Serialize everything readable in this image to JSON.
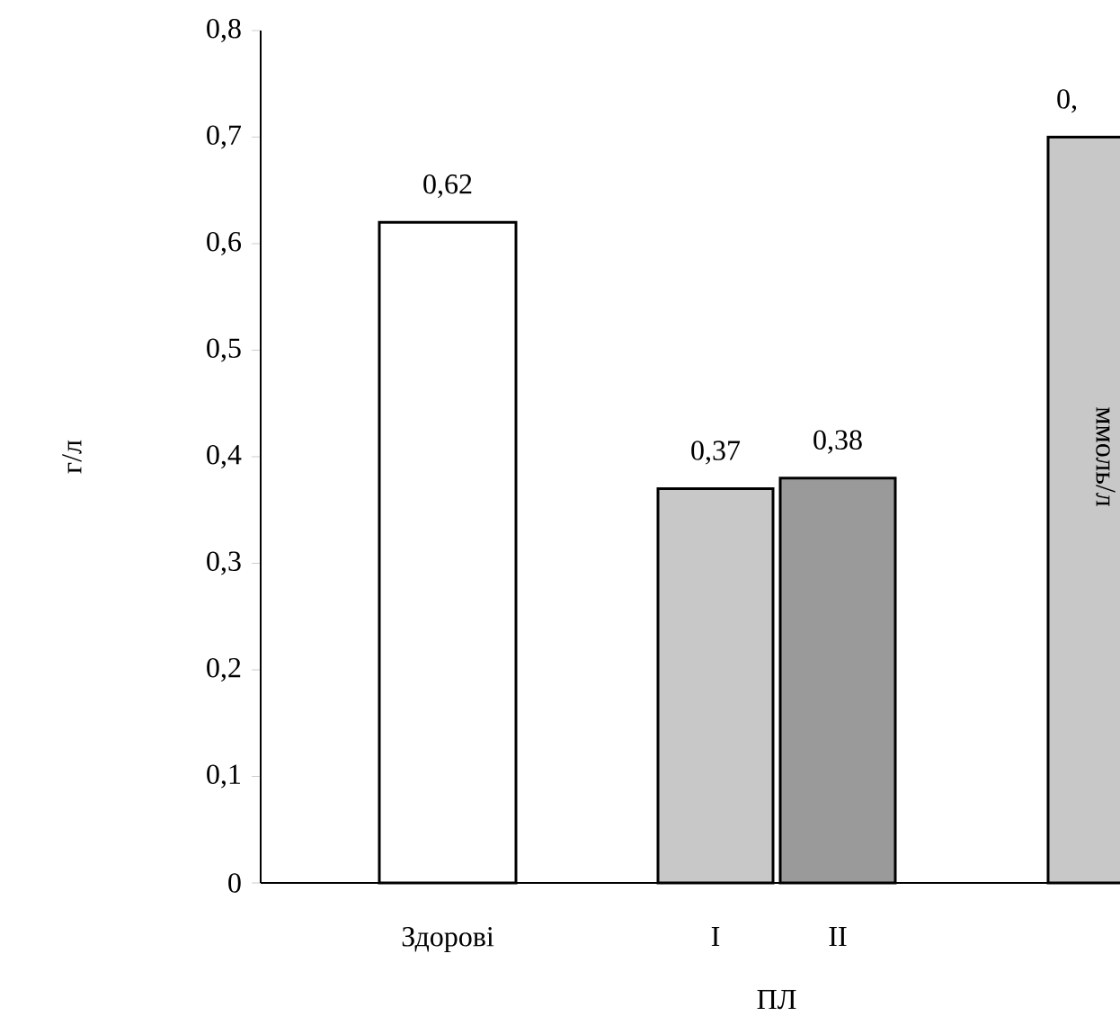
{
  "chart_data": {
    "type": "bar",
    "categories": [
      "Здорові",
      "I",
      "II",
      null
    ],
    "values": [
      0.62,
      0.37,
      0.38,
      0.7
    ],
    "value_labels": [
      "0,62",
      "0,37",
      "0,38",
      null
    ],
    "annotations": [
      "0,"
    ],
    "colors": [
      "#ffffff",
      "#c8c8c8",
      "#9a9a9a",
      "#c8c8c8"
    ],
    "xlabel": "ПЛ",
    "ylabel": "г/л",
    "y2label": "ммоль/л",
    "ylim": [
      0,
      0.8
    ],
    "yticks": [
      0,
      {
        "value": 0.1,
        "label": "0,1"
      },
      {
        "value": 0.2,
        "label": "0,2"
      },
      {
        "value": 0.3,
        "label": "0,3"
      },
      {
        "value": 0.4,
        "label": "0,4"
      },
      {
        "value": 0.5,
        "label": "0,5"
      },
      {
        "value": 0.6,
        "label": "0,6"
      },
      {
        "value": 0.7,
        "label": "0,7"
      },
      {
        "value": 0.8,
        "label": "0,8"
      }
    ],
    "grid": false
  }
}
